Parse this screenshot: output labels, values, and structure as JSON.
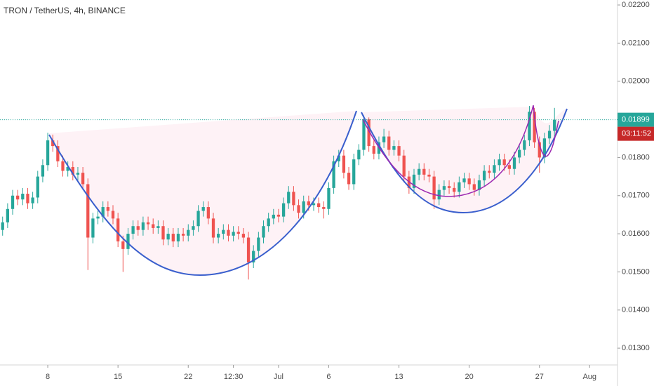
{
  "chart_data": {
    "type": "candlestick",
    "title": "TRON / TetherUS, 4h, BINANCE",
    "up_color": "#26a69a",
    "down_color": "#ef5350",
    "x": [
      3.5,
      4,
      4.5,
      5,
      5.5,
      6,
      6.5,
      7,
      7.5,
      8,
      8.5,
      9,
      9.5,
      10,
      10.5,
      11,
      11.5,
      12,
      12.5,
      13,
      13.5,
      14,
      14.5,
      15,
      15.5,
      16,
      16.5,
      17,
      17.5,
      18,
      18.5,
      19,
      19.5,
      20,
      20.5,
      21,
      21.5,
      22,
      22.5,
      23,
      23.5,
      24,
      24.5,
      25,
      25.5,
      26,
      26.5,
      27,
      27.5,
      28,
      28.5,
      29,
      29.5,
      30,
      30.5,
      31,
      31.5,
      32,
      32.5,
      33,
      33.5,
      34,
      34.5,
      35,
      35.5,
      36,
      36.5,
      37,
      37.5,
      38,
      38.5,
      39,
      39.5,
      40,
      40.5,
      41,
      41.5,
      42,
      42.5,
      43,
      43.5,
      44,
      44.5,
      45,
      45.5,
      46,
      46.5,
      47,
      47.5,
      48,
      48.5,
      49,
      49.5,
      50,
      50.5,
      51,
      51.5,
      52,
      52.5,
      53,
      53.5,
      54,
      54.5,
      55,
      55.5,
      56,
      56.5,
      57,
      57.5,
      58,
      58.5
    ],
    "open": [
      0.0161,
      0.0163,
      0.01665,
      0.017,
      0.0169,
      0.01705,
      0.0168,
      0.01695,
      0.0175,
      0.0178,
      0.01845,
      0.0183,
      0.0179,
      0.01765,
      0.01775,
      0.01755,
      0.0176,
      0.0173,
      0.0159,
      0.0164,
      0.01645,
      0.0167,
      0.0166,
      0.0164,
      0.0158,
      0.0156,
      0.016,
      0.0162,
      0.0161,
      0.0163,
      0.01625,
      0.01615,
      0.0162,
      0.01585,
      0.016,
      0.0158,
      0.016,
      0.01595,
      0.0161,
      0.0162,
      0.0166,
      0.0167,
      0.0164,
      0.0159,
      0.016,
      0.0161,
      0.01595,
      0.01605,
      0.016,
      0.0159,
      0.01525,
      0.01555,
      0.0159,
      0.0162,
      0.0164,
      0.0165,
      0.01645,
      0.0168,
      0.0171,
      0.01675,
      0.01655,
      0.01685,
      0.01675,
      0.0168,
      0.0167,
      0.01665,
      0.0172,
      0.0179,
      0.01805,
      0.0176,
      0.0173,
      0.01795,
      0.0182,
      0.019,
      0.0183,
      0.0181,
      0.0184,
      0.01855,
      0.0182,
      0.0183,
      0.01805,
      0.0175,
      0.0172,
      0.01755,
      0.0177,
      0.01755,
      0.0175,
      0.0169,
      0.01715,
      0.01725,
      0.0172,
      0.0171,
      0.01735,
      0.01745,
      0.0173,
      0.01715,
      0.0174,
      0.01765,
      0.0176,
      0.0178,
      0.01795,
      0.0178,
      0.0177,
      0.018,
      0.0182,
      0.01845,
      0.0192,
      0.0184,
      0.018,
      0.0185,
      0.0187
    ],
    "high": [
      0.01645,
      0.0168,
      0.01715,
      0.01715,
      0.0172,
      0.0172,
      0.0171,
      0.01765,
      0.01795,
      0.01865,
      0.0186,
      0.01845,
      0.01805,
      0.0179,
      0.0179,
      0.01775,
      0.01775,
      0.01745,
      0.01655,
      0.0166,
      0.01685,
      0.01685,
      0.01675,
      0.01655,
      0.01595,
      0.01615,
      0.01635,
      0.01635,
      0.01645,
      0.01645,
      0.0164,
      0.01635,
      0.01635,
      0.01615,
      0.01615,
      0.01615,
      0.01615,
      0.01625,
      0.01635,
      0.01675,
      0.01685,
      0.01685,
      0.01655,
      0.01615,
      0.01625,
      0.01625,
      0.0162,
      0.0162,
      0.01615,
      0.01605,
      0.0157,
      0.01605,
      0.01635,
      0.01655,
      0.01665,
      0.01665,
      0.01695,
      0.01725,
      0.01725,
      0.0169,
      0.017,
      0.017,
      0.01695,
      0.01695,
      0.01685,
      0.01735,
      0.01805,
      0.0182,
      0.0182,
      0.01775,
      0.0181,
      0.01835,
      0.0191,
      0.01905,
      0.01845,
      0.01855,
      0.01875,
      0.0187,
      0.01845,
      0.01845,
      0.0182,
      0.01765,
      0.0177,
      0.01785,
      0.01785,
      0.0177,
      0.01765,
      0.0173,
      0.0174,
      0.0174,
      0.01735,
      0.0175,
      0.0176,
      0.0176,
      0.01745,
      0.01755,
      0.0178,
      0.0178,
      0.01795,
      0.0181,
      0.0181,
      0.01795,
      0.01815,
      0.01835,
      0.0186,
      0.01935,
      0.0193,
      0.01855,
      0.01865,
      0.01885,
      0.0193
    ],
    "low": [
      0.01595,
      0.01615,
      0.0165,
      0.01675,
      0.01675,
      0.01665,
      0.01665,
      0.0168,
      0.01735,
      0.01765,
      0.01815,
      0.01775,
      0.0175,
      0.0175,
      0.0174,
      0.0174,
      0.01715,
      0.01505,
      0.01575,
      0.01625,
      0.0163,
      0.01645,
      0.01625,
      0.01565,
      0.015,
      0.01545,
      0.01585,
      0.01595,
      0.01595,
      0.0161,
      0.016,
      0.016,
      0.0157,
      0.0157,
      0.01565,
      0.01565,
      0.0158,
      0.0158,
      0.01595,
      0.01605,
      0.01645,
      0.01625,
      0.01575,
      0.01575,
      0.01585,
      0.0158,
      0.0158,
      0.01585,
      0.01575,
      0.0148,
      0.0151,
      0.0154,
      0.01575,
      0.01605,
      0.01625,
      0.0163,
      0.0163,
      0.01665,
      0.0166,
      0.0164,
      0.0164,
      0.0166,
      0.0166,
      0.01655,
      0.0164,
      0.0165,
      0.01705,
      0.01775,
      0.01745,
      0.01715,
      0.01715,
      0.0178,
      0.01805,
      0.01815,
      0.01795,
      0.01795,
      0.01825,
      0.01805,
      0.01805,
      0.0179,
      0.01735,
      0.01705,
      0.01705,
      0.0174,
      0.0174,
      0.01735,
      0.01665,
      0.01675,
      0.017,
      0.01705,
      0.01695,
      0.01695,
      0.0172,
      0.01715,
      0.017,
      0.017,
      0.01725,
      0.01745,
      0.01745,
      0.01765,
      0.01765,
      0.01755,
      0.01755,
      0.01785,
      0.01805,
      0.0183,
      0.01825,
      0.0176,
      0.01785,
      0.01835,
      0.01855
    ],
    "close": [
      0.0163,
      0.01665,
      0.017,
      0.0169,
      0.01705,
      0.0168,
      0.01695,
      0.0175,
      0.0178,
      0.01845,
      0.0183,
      0.0179,
      0.01765,
      0.01775,
      0.01755,
      0.0176,
      0.0173,
      0.0159,
      0.0164,
      0.01645,
      0.0167,
      0.0166,
      0.0164,
      0.0158,
      0.0156,
      0.016,
      0.0162,
      0.0161,
      0.0163,
      0.01625,
      0.01615,
      0.0162,
      0.01585,
      0.016,
      0.0158,
      0.016,
      0.01595,
      0.0161,
      0.0162,
      0.0166,
      0.0167,
      0.0164,
      0.0159,
      0.016,
      0.0161,
      0.01595,
      0.01605,
      0.016,
      0.0159,
      0.01525,
      0.01555,
      0.0159,
      0.0162,
      0.0164,
      0.0165,
      0.01645,
      0.0168,
      0.0171,
      0.01675,
      0.01655,
      0.01685,
      0.01675,
      0.0168,
      0.0167,
      0.01665,
      0.0172,
      0.0179,
      0.01805,
      0.0176,
      0.0173,
      0.01795,
      0.0182,
      0.019,
      0.0183,
      0.0181,
      0.0184,
      0.01855,
      0.0182,
      0.0183,
      0.01805,
      0.0175,
      0.0172,
      0.01755,
      0.0177,
      0.01755,
      0.0175,
      0.0169,
      0.01715,
      0.01725,
      0.0172,
      0.0171,
      0.01735,
      0.01745,
      0.0173,
      0.01715,
      0.0174,
      0.01765,
      0.0176,
      0.0178,
      0.01795,
      0.0178,
      0.0177,
      0.018,
      0.0182,
      0.01845,
      0.0192,
      0.0184,
      0.018,
      0.0185,
      0.0187,
      0.01899
    ],
    "xlim": [
      3.24,
      64.78
    ],
    "xticks": [
      8,
      15,
      22,
      {
        "value": 26.5,
        "label": "12:30"
      },
      {
        "value": 31,
        "label": "Jul"
      },
      {
        "value": 36,
        "label": "6"
      },
      {
        "value": 43,
        "label": "13"
      },
      {
        "value": 50,
        "label": "20"
      },
      {
        "value": 57,
        "label": "27"
      },
      {
        "value": 62,
        "label": "Aug"
      }
    ],
    "ylim": [
      0.01256,
      0.02213
    ],
    "yticks": [
      {
        "value": 0.013,
        "label": "0.01300"
      },
      {
        "value": 0.014,
        "label": "0.01400"
      },
      {
        "value": 0.015,
        "label": "0.01500"
      },
      {
        "value": 0.016,
        "label": "0.01600"
      },
      {
        "value": 0.017,
        "label": "0.01700"
      },
      {
        "value": 0.018,
        "label": "0.01800"
      },
      {
        "value": 0.019,
        "label": "0.01900"
      },
      {
        "value": 0.02,
        "label": "0.02000"
      },
      {
        "value": 0.021,
        "label": "0.02100"
      },
      {
        "value": 0.022,
        "label": "0.02200"
      }
    ],
    "last_price": 0.01899,
    "countdown": "03:11:52"
  }
}
